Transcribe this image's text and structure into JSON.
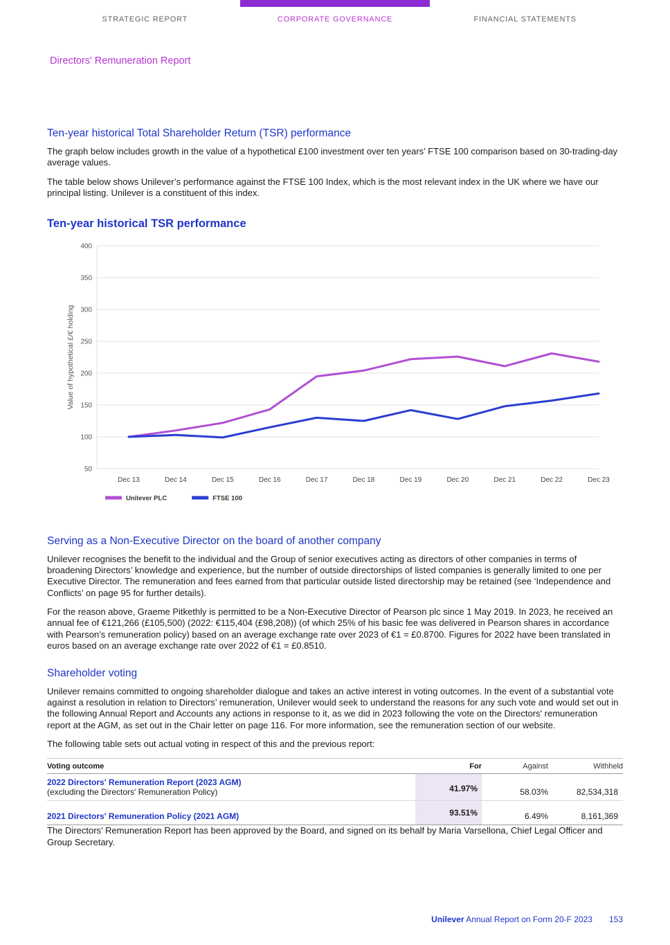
{
  "header": {
    "tabs": [
      {
        "label": "STRATEGIC REPORT",
        "active": false
      },
      {
        "label": "CORPORATE GOVERNANCE",
        "active": true
      },
      {
        "label": "FINANCIAL STATEMENTS",
        "active": false
      }
    ],
    "report_title": "Directors' Remuneration Report"
  },
  "sections": {
    "tsr": {
      "heading": "Ten-year historical Total Shareholder Return (TSR) performance",
      "para1": "The graph below includes growth in the value of a hypothetical £100 investment over ten years’ FTSE 100 comparison based on 30-trading-day average values.",
      "para2": "The table below shows Unilever’s performance against the FTSE 100 Index, which is the most relevant index in the UK where we have our principal listing. Unilever is a constituent of this index."
    },
    "chart_title": "Ten-year historical TSR performance",
    "ned": {
      "heading": "Serving as a Non-Executive Director on the board of another company",
      "para1": "Unilever recognises the benefit to the individual and the Group of senior executives acting as directors of other companies in terms of broadening Directors’ knowledge and experience, but the number of outside directorships of listed companies is generally limited to one per Executive Director. The remuneration and fees earned from that particular outside listed directorship may be retained (see ‘Independence and Conflicts’ on page 95 for further details).",
      "para2": "For the reason above, Graeme Pitkethly is permitted to be a Non-Executive Director of Pearson plc since 1 May 2019. In 2023, he received an annual fee of €121,266 (£105,500) (2022: €115,404 (£98,208)) (of which 25% of his basic fee was delivered in Pearson shares in accordance with Pearson’s remuneration policy) based on an average exchange rate over 2023 of €1 = £0.8700. Figures for 2022 have been translated in euros based on an average exchange rate over 2022 of €1 = £0.8510."
    },
    "voting": {
      "heading": "Shareholder voting",
      "para1": "Unilever remains committed to ongoing shareholder dialogue and takes an active interest in voting outcomes. In the event of a substantial vote against a resolution in relation to Directors’ remuneration, Unilever would seek to understand the reasons for any such vote and would set out in the following Annual Report and Accounts any actions in response to it, as we did in 2023 following the vote on the Directors' remuneration report at the AGM, as set out in the Chair letter on page 116. For more information, see the remuneration section of our website.",
      "para2": "The following table sets out actual voting in respect of this and the previous report:"
    },
    "closing": "The Directors’ Remuneration Report has been approved by the Board, and signed on its behalf by Maria Varsellona, Chief Legal Officer and Group Secretary."
  },
  "table": {
    "headers": [
      "Voting outcome",
      "For",
      "Against",
      "Withheld"
    ],
    "rows": [
      {
        "label": "2022 Directors' Remuneration Report (2023 AGM)",
        "sublabel": "(excluding the Directors' Remuneration Policy)",
        "for": "41.97%",
        "against": "58.03%",
        "withheld": "82,534,318"
      },
      {
        "label": "2021 Directors' Remuneration Policy (2021 AGM)",
        "sublabel": "",
        "for": "93.51%",
        "against": "6.49%",
        "withheld": "8,161,369"
      }
    ]
  },
  "chart_data": {
    "type": "line",
    "title": "Ten-year historical TSR performance",
    "ylabel": "Value of hypothetical £/€ holding",
    "categories": [
      "Dec 13",
      "Dec 14",
      "Dec 15",
      "Dec 16",
      "Dec 17",
      "Dec 18",
      "Dec 19",
      "Dec 20",
      "Dec 21",
      "Dec 22",
      "Dec 23"
    ],
    "series": [
      {
        "name": "Unilever PLC",
        "color": "#b14fd4",
        "values": [
          100,
          110,
          122,
          143,
          195,
          204,
          222,
          226,
          211,
          231,
          218
        ]
      },
      {
        "name": "FTSE 100",
        "color": "#2b3dd1",
        "values": [
          100,
          103,
          99,
          115,
          130,
          125,
          142,
          128,
          148,
          157,
          168
        ]
      }
    ],
    "ylim": [
      50,
      400
    ],
    "yticks": [
      50,
      100,
      150,
      200,
      250,
      300,
      350,
      400
    ],
    "grid": true,
    "legend_position": "bottom-left"
  },
  "footer": {
    "brand": "Unilever",
    "text": " Annual Report on Form 20-F 2023",
    "page_number": "153"
  },
  "colors": {
    "accent_magenta": "#b836d2",
    "tab_bar_purple": "#8c2bd2",
    "heading_blue": "#1f36c7",
    "body_text": "#1b1b1b",
    "table_highlight": "#ece5f4",
    "gridline": "#e2e2e2",
    "inactive_tab": "#636363"
  }
}
